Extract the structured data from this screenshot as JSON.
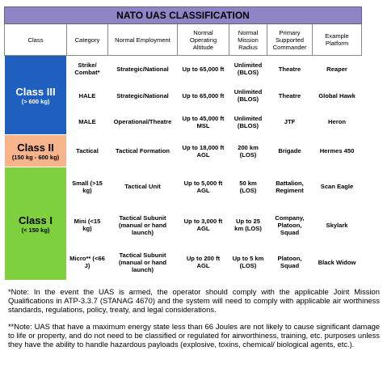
{
  "title": "NATO UAS CLASSIFICATION",
  "columns": [
    "Class",
    "Category",
    "Normal Employment",
    "Normal Operating Altitude",
    "Normal Mission Radius",
    "Primary Supported Commander",
    "Example Platform"
  ],
  "classes": [
    {
      "label": "Class III",
      "sublabel": "(> 600 kg)",
      "rows": [
        [
          "Strike/ Combat*",
          "Strategic/National",
          "Up to 65,000 ft",
          "Unlimited (BLOS)",
          "Theatre",
          "Reaper"
        ],
        [
          "HALE",
          "Strategic/National",
          "Up to 65,000 ft",
          "Unlimited (BLOS)",
          "Theatre",
          "Global Hawk"
        ],
        [
          "MALE",
          "Operational/Theatre",
          "Up to 45,000 ft MSL",
          "Unlimited (BLOS)",
          "JTF",
          "Heron"
        ]
      ]
    },
    {
      "label": "Class II",
      "sublabel": "(150 kg - 600 kg)",
      "rows": [
        [
          "Tactical",
          "Tactical Formation",
          "Up to 18,000 ft AGL",
          "200 km (LOS)",
          "Brigade",
          "Hermes 450"
        ]
      ]
    },
    {
      "label": "Class I",
      "sublabel": "(< 150 kg)",
      "rows": [
        [
          "Small (>15 kg)",
          "Tactical Unit",
          "Up to 5,000 ft AGL",
          "50 km (LOS)",
          "Battalion, Regiment",
          "Scan Eagle"
        ],
        [
          "Mini (<15 kg)",
          "Tactical Subunit (manual or hand launch)",
          "Up to 3,000 ft AGL",
          "Up to 25 km (LOS)",
          "Company, Platoon, Squad",
          "Skylark"
        ],
        [
          "Micro** (<66 J)",
          "Tactical Subunit (manual or hand launch)",
          "Up to 200 ft AGL",
          "Up to 5 km (LOS)",
          "Platoon, Squad",
          "Black Widow"
        ]
      ]
    }
  ],
  "notes": [
    "*Note: In the event the UAS is armed, the operator should comply with the applicable Joint Mission Qualifications in ATP-3.3.7 (STANAG 4670) and the system will need to comply with applicable air worthiness standards, regulations, policy, treaty, and legal considerations.",
    "**Note: UAS that have a maximum energy state less than 66 Joules are not likely to cause significant damage to life or property, and do not need to be classified or regulated for airworthiness, training, etc. purposes unless they have the ability to handle hazardous payloads (explosive, toxins, chemical/ biological agents, etc.)."
  ]
}
